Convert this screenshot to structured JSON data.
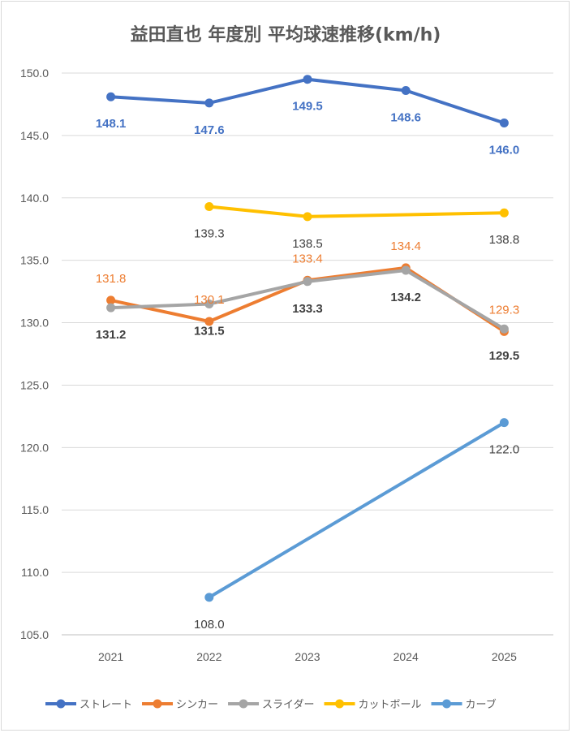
{
  "chart_data": {
    "type": "line",
    "title": "益田直也 年度別 平均球速推移(km/h)",
    "categories": [
      "2021",
      "2022",
      "2023",
      "2024",
      "2025"
    ],
    "ylim": [
      105,
      150
    ],
    "yticks": [
      "105.0",
      "110.0",
      "115.0",
      "120.0",
      "125.0",
      "130.0",
      "135.0",
      "140.0",
      "145.0",
      "150.0"
    ],
    "grid": true,
    "legend": "bottom",
    "series": [
      {
        "name": "ストレート",
        "color": "#4472C4",
        "label_color": "#4472C4",
        "label_bold": true,
        "values": [
          148.1,
          147.6,
          149.5,
          148.6,
          146.0
        ],
        "labels": [
          "148.1",
          "147.6",
          "149.5",
          "148.6",
          "146.0"
        ]
      },
      {
        "name": "シンカー",
        "color": "#ED7D31",
        "label_color": "#ED7D31",
        "label_bold": false,
        "values": [
          131.8,
          130.1,
          133.4,
          134.4,
          129.3
        ],
        "labels": [
          "131.8",
          "130.1",
          "133.4",
          "134.4",
          "129.3"
        ]
      },
      {
        "name": "スライダー",
        "color": "#A5A5A5",
        "label_color": "#404040",
        "label_bold": true,
        "values": [
          131.2,
          131.5,
          133.3,
          134.2,
          129.5
        ],
        "labels": [
          "131.2",
          "131.5",
          "133.3",
          "134.2",
          "129.5"
        ]
      },
      {
        "name": "カットボール",
        "color": "#FFC000",
        "label_color": "#404040",
        "label_bold": false,
        "values": [
          null,
          139.3,
          138.5,
          null,
          138.8
        ],
        "labels": [
          null,
          "139.3",
          "138.5",
          null,
          "138.8"
        ]
      },
      {
        "name": "カーブ",
        "color": "#5B9BD5",
        "label_color": "#404040",
        "label_bold": false,
        "values": [
          null,
          108.0,
          null,
          null,
          122.0
        ],
        "labels": [
          null,
          "108.0",
          null,
          null,
          "122.0"
        ]
      }
    ]
  }
}
